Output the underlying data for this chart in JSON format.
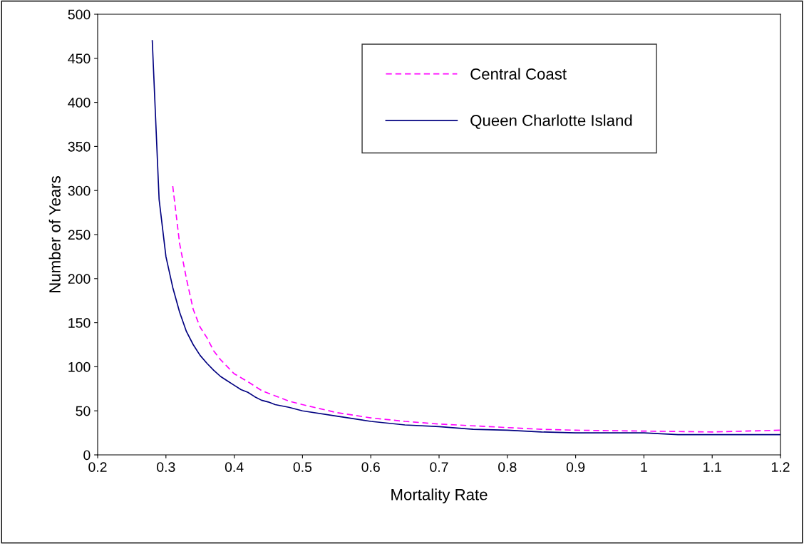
{
  "chart_data": {
    "type": "line",
    "xlabel": "Mortality Rate",
    "ylabel": "Number of Years",
    "xlim": [
      0.2,
      1.2
    ],
    "xticks": [
      0.2,
      0.3,
      0.4,
      0.5,
      0.6,
      0.7,
      0.8,
      0.9,
      {
        "value": 1.0,
        "label": "1"
      },
      1.1,
      1.2
    ],
    "ylim": [
      0,
      500
    ],
    "yticks": [
      0,
      50,
      100,
      150,
      200,
      250,
      300,
      350,
      400,
      450,
      500
    ],
    "grid": false,
    "legend": "top right",
    "marker": "none",
    "series": [
      {
        "name": "Central Coast",
        "color": "#ff00ff",
        "line_style": "dashed",
        "x": [
          0.31,
          0.32,
          0.33,
          0.34,
          0.35,
          0.36,
          0.37,
          0.38,
          0.39,
          0.4,
          0.42,
          0.44,
          0.46,
          0.48,
          0.5,
          0.55,
          0.6,
          0.65,
          0.7,
          0.75,
          0.8,
          0.85,
          0.9,
          1.0,
          1.1,
          1.2
        ],
        "values": [
          305,
          240,
          200,
          165,
          145,
          133,
          118,
          108,
          100,
          92,
          83,
          73,
          67,
          61,
          57,
          48,
          42,
          38,
          35,
          33,
          31,
          29,
          28,
          27,
          26,
          28
        ]
      },
      {
        "name": "Queen Charlotte Island",
        "color": "#000080",
        "line_style": "solid",
        "x": [
          0.28,
          0.29,
          0.3,
          0.31,
          0.32,
          0.33,
          0.34,
          0.35,
          0.36,
          0.37,
          0.38,
          0.39,
          0.4,
          0.41,
          0.42,
          0.43,
          0.44,
          0.45,
          0.46,
          0.48,
          0.5,
          0.55,
          0.6,
          0.65,
          0.7,
          0.75,
          0.8,
          0.85,
          0.9,
          1.0,
          1.05,
          1.2
        ],
        "values": [
          470,
          290,
          225,
          190,
          162,
          140,
          125,
          113,
          104,
          96,
          89,
          84,
          79,
          74,
          71,
          66,
          62,
          60,
          57,
          54,
          50,
          44,
          38,
          34,
          32,
          29,
          28,
          26,
          25,
          25,
          23,
          23
        ]
      }
    ]
  }
}
